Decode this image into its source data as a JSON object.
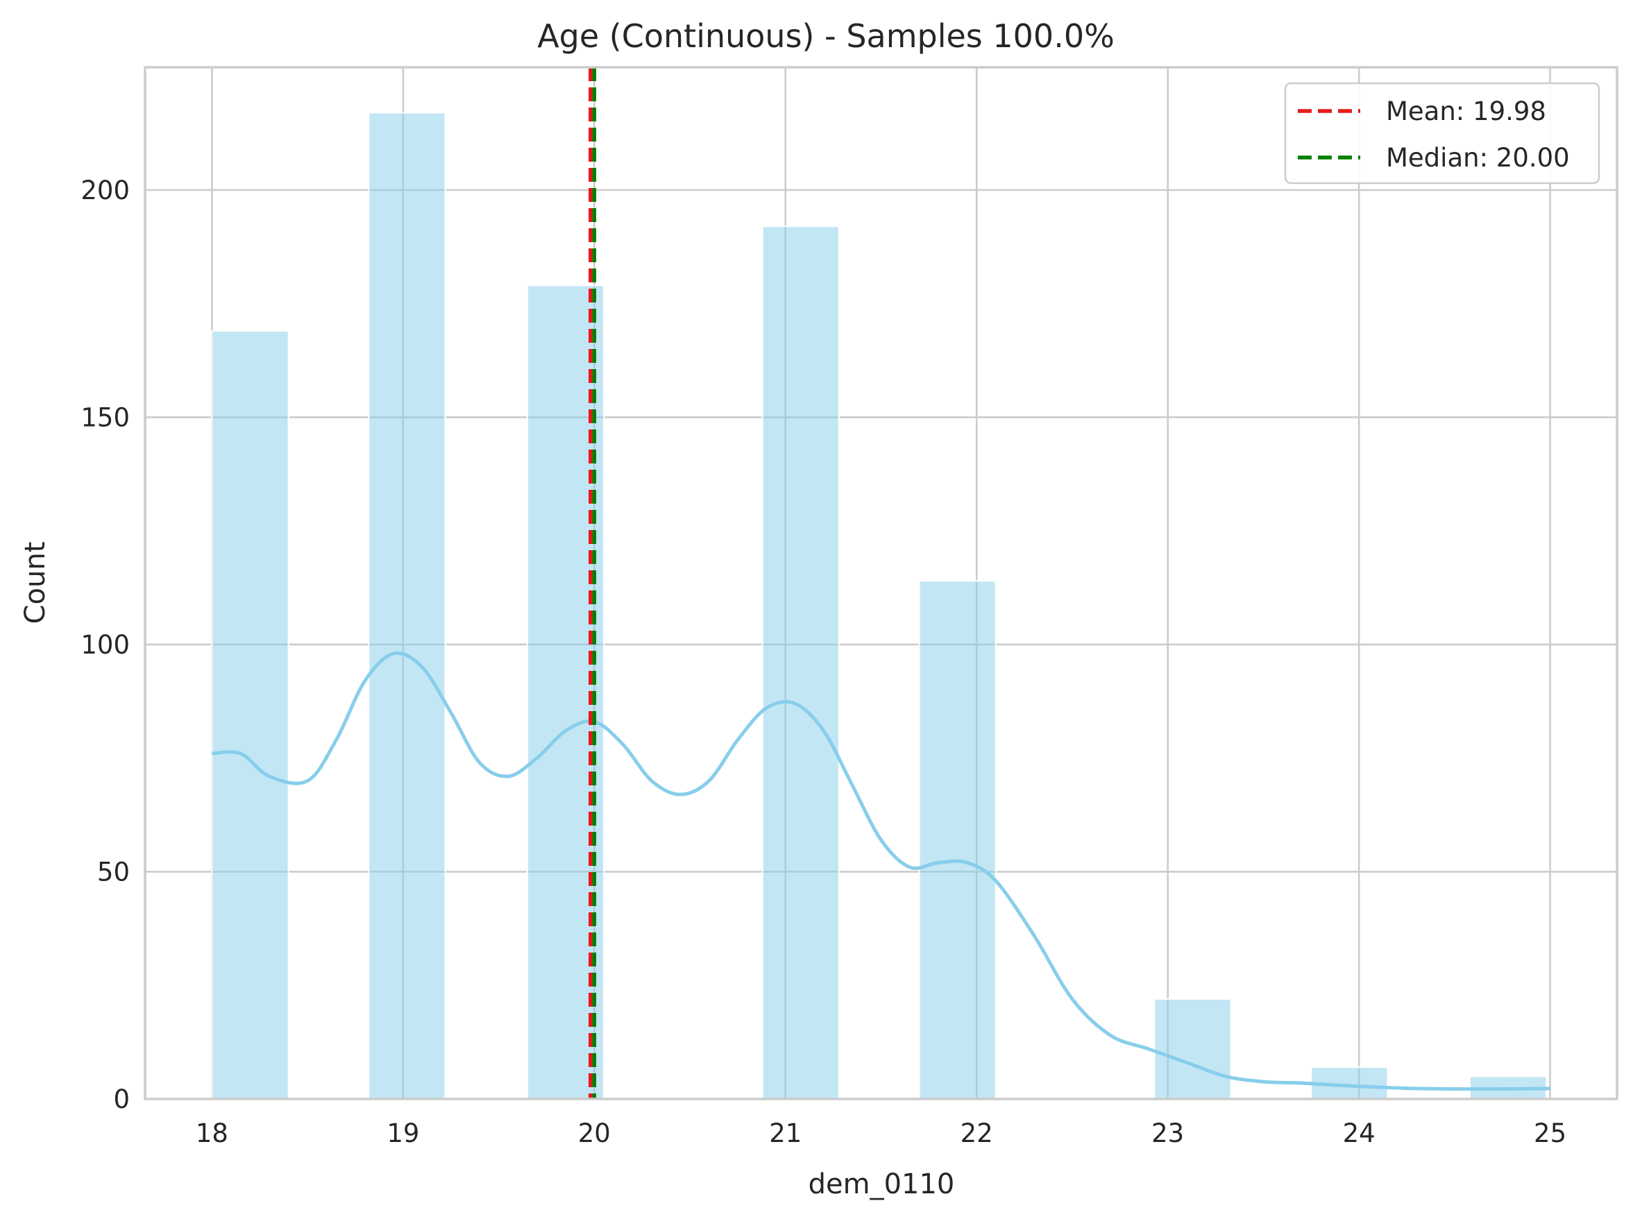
{
  "chart_data": {
    "type": "histogram",
    "title": "Age (Continuous) - Samples 100.0%",
    "xlabel": "dem_0110",
    "ylabel": "Count",
    "xlim": [
      17.65,
      25.35
    ],
    "ylim": [
      0,
      227
    ],
    "xticks": [
      18,
      19,
      20,
      21,
      22,
      23,
      24,
      25
    ],
    "yticks": [
      0,
      50,
      100,
      150,
      200
    ],
    "grid": true,
    "bar_color": "#87ceeb",
    "bins": [
      {
        "start": 18.0,
        "end": 18.4,
        "count": 169
      },
      {
        "start": 18.82,
        "end": 19.22,
        "count": 217
      },
      {
        "start": 19.65,
        "end": 20.05,
        "count": 179
      },
      {
        "start": 20.88,
        "end": 21.28,
        "count": 192
      },
      {
        "start": 21.7,
        "end": 22.1,
        "count": 114
      },
      {
        "start": 22.93,
        "end": 23.33,
        "count": 22
      },
      {
        "start": 23.75,
        "end": 24.15,
        "count": 7
      },
      {
        "start": 24.58,
        "end": 24.98,
        "count": 5
      }
    ],
    "kde": {
      "name": "KDE",
      "color": "#87ceeb",
      "x": [
        18.0,
        18.15,
        18.3,
        18.5,
        18.65,
        18.8,
        18.95,
        19.1,
        19.25,
        19.4,
        19.55,
        19.7,
        19.85,
        20.0,
        20.15,
        20.3,
        20.45,
        20.6,
        20.75,
        20.9,
        21.05,
        21.2,
        21.35,
        21.5,
        21.65,
        21.8,
        21.95,
        22.1,
        22.3,
        22.5,
        22.7,
        22.9,
        23.1,
        23.3,
        23.5,
        23.7,
        23.9,
        24.1,
        24.3,
        24.5,
        24.7,
        25.0
      ],
      "y": [
        76,
        76,
        71,
        70,
        79,
        92,
        98,
        95,
        85,
        74,
        71,
        75,
        81,
        83,
        78,
        70,
        67,
        70,
        79,
        86,
        87,
        81,
        69,
        57,
        51,
        52,
        52,
        48,
        36,
        22,
        14,
        11,
        8,
        5,
        3.8,
        3.5,
        3,
        2.6,
        2.3,
        2.2,
        2.2,
        2.3
      ]
    },
    "reference_lines": [
      {
        "name": "Mean",
        "label": "Mean: 19.98",
        "value": 19.98,
        "color": "#e41a1c",
        "style": "dashed"
      },
      {
        "name": "Median",
        "label": "Median: 20.00",
        "value": 20.0,
        "color": "#008000",
        "style": "dashed"
      }
    ],
    "legend": {
      "position": "top-right"
    }
  }
}
